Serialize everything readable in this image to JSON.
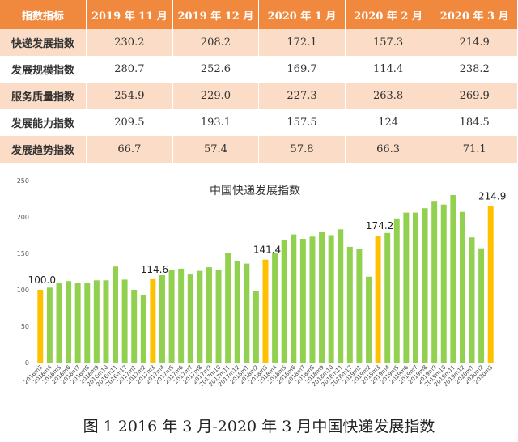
{
  "table": {
    "header": [
      "指数指标",
      "2019 年 11 月",
      "2019 年 12 月",
      "2020 年 1 月",
      "2020 年 2 月",
      "2020 年 3 月"
    ],
    "rows": [
      [
        "快递发展指数",
        "230.2",
        "208.2",
        "172.1",
        "157.3",
        "214.9"
      ],
      [
        "发展规模指数",
        "280.7",
        "252.6",
        "169.7",
        "114.4",
        "238.2"
      ],
      [
        "服务质量指数",
        "254.9",
        "229.0",
        "227.3",
        "263.8",
        "269.9"
      ],
      [
        "发展能力指数",
        "209.5",
        "193.1",
        "157.5",
        "124",
        "184.5"
      ],
      [
        "发展趋势指数",
        "66.7",
        "57.4",
        "57.8",
        "66.3",
        "71.1"
      ]
    ]
  },
  "chart_data": {
    "type": "bar",
    "title": "中国快递发展指数",
    "categories": [
      "2016m3",
      "2016m4",
      "2016m5",
      "2016m6",
      "2016m7",
      "2016m8",
      "2016m9",
      "2016m10",
      "2016m11",
      "2016m12",
      "2017m1",
      "2017m2",
      "2017m3",
      "2017m4",
      "2017m5",
      "2017m6",
      "2017m7",
      "2017m8",
      "2017m9",
      "2017m10",
      "2017m11",
      "2017m12",
      "2018m1",
      "2018m2",
      "2018m3",
      "2018m4",
      "2018m5",
      "2018m6",
      "2018m7",
      "2018m8",
      "2018m9",
      "2018m10",
      "2018m11",
      "2018m12",
      "2019m1",
      "2019m2",
      "2019m3",
      "2019m4",
      "2019m5",
      "2019m6",
      "2019m7",
      "2019m8",
      "2019m9",
      "2019m10",
      "2019m11",
      "2019m12",
      "2020m1",
      "2020m2",
      "2020m3"
    ],
    "values": [
      100.0,
      103,
      110,
      112,
      110,
      110,
      113,
      113,
      132,
      114,
      100,
      93,
      114.6,
      120,
      127,
      129,
      121,
      126,
      131,
      127,
      151,
      140,
      136,
      98,
      141.4,
      150,
      168,
      176,
      170,
      173,
      180,
      175,
      183,
      159,
      156,
      118,
      174.2,
      178,
      198,
      206,
      206,
      212,
      222,
      217,
      230,
      207,
      172,
      157,
      214.9
    ],
    "value_labels": [
      "100.0",
      null,
      null,
      null,
      null,
      null,
      null,
      null,
      null,
      null,
      null,
      null,
      "114.6",
      null,
      null,
      null,
      null,
      null,
      null,
      null,
      null,
      null,
      null,
      null,
      "141.4",
      null,
      null,
      null,
      null,
      null,
      null,
      null,
      null,
      null,
      null,
      null,
      "174.2",
      null,
      null,
      null,
      null,
      null,
      null,
      null,
      null,
      null,
      null,
      null,
      "214.9"
    ],
    "colors": [
      "#ffc000",
      "#92d050",
      "#92d050",
      "#92d050",
      "#92d050",
      "#92d050",
      "#92d050",
      "#92d050",
      "#92d050",
      "#92d050",
      "#92d050",
      "#92d050",
      "#ffc000",
      "#92d050",
      "#92d050",
      "#92d050",
      "#92d050",
      "#92d050",
      "#92d050",
      "#92d050",
      "#92d050",
      "#92d050",
      "#92d050",
      "#92d050",
      "#ffc000",
      "#92d050",
      "#92d050",
      "#92d050",
      "#92d050",
      "#92d050",
      "#92d050",
      "#92d050",
      "#92d050",
      "#92d050",
      "#92d050",
      "#92d050",
      "#ffc000",
      "#92d050",
      "#92d050",
      "#92d050",
      "#92d050",
      "#92d050",
      "#92d050",
      "#92d050",
      "#92d050",
      "#92d050",
      "#92d050",
      "#92d050",
      "#ffc000"
    ],
    "ylim": [
      0,
      250
    ],
    "yticks": [
      0,
      50,
      100,
      150,
      200,
      250
    ],
    "grid": false
  },
  "caption": "图 1 2016 年 3 月-2020 年 3 月中国快递发展指数"
}
